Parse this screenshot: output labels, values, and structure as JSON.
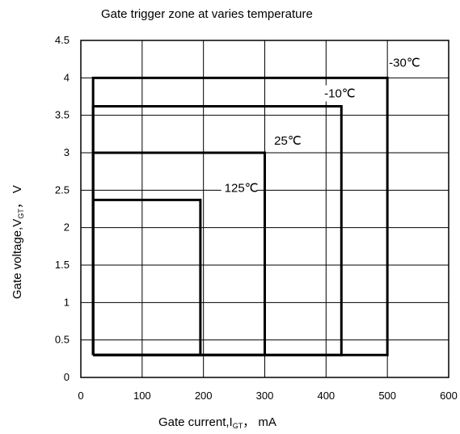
{
  "chart_data": {
    "type": "line",
    "title": "Gate trigger zone at varies temperature",
    "xlabel": {
      "prefix": "Gate current,I",
      "sub": "GT",
      "suffix": "，  mA"
    },
    "ylabel": {
      "prefix": "Gate voltage,V",
      "sub": "GT",
      "suffix": "，  V"
    },
    "xlim": [
      0,
      600
    ],
    "ylim": [
      0,
      4.5
    ],
    "xticks": [
      0,
      100,
      200,
      300,
      400,
      500,
      600
    ],
    "xtick_labels": [
      "0",
      "100",
      "200",
      "300",
      "400",
      "500",
      "600"
    ],
    "yticks": [
      0,
      0.5,
      1,
      1.5,
      2,
      2.5,
      3,
      3.5,
      4,
      4.5
    ],
    "ytick_labels": [
      "0",
      "0.5",
      "1",
      "1.5",
      "2",
      "2.5",
      "3",
      "3.5",
      "4",
      "4.5"
    ],
    "grid": true,
    "series": [
      {
        "name": "-30℃",
        "x": [
          20,
          500,
          500,
          20,
          20
        ],
        "y": [
          0.3,
          0.3,
          4.0,
          4.0,
          0.3
        ]
      },
      {
        "name": "-10℃",
        "x": [
          20,
          425,
          425,
          20,
          20
        ],
        "y": [
          0.3,
          0.3,
          3.62,
          3.62,
          0.3
        ]
      },
      {
        "name": "25℃",
        "x": [
          20,
          300,
          300,
          20,
          20
        ],
        "y": [
          0.3,
          0.3,
          3.0,
          3.0,
          0.3
        ]
      },
      {
        "name": "125℃",
        "x": [
          20,
          195,
          195,
          20,
          20
        ],
        "y": [
          0.3,
          0.3,
          2.37,
          2.37,
          0.3
        ]
      }
    ]
  }
}
